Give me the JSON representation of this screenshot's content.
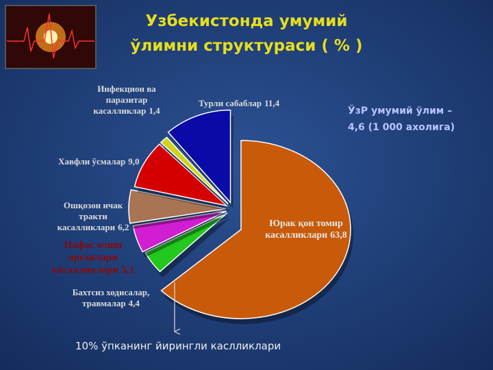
{
  "chart_data": {
    "type": "pie",
    "title": [
      "Узбекистонда умумий",
      "ўлимни структураси ( % )"
    ],
    "categories": [
      [
        "Юрак қон томир",
        "касалликлари"
      ],
      [
        "Бахтсиз ходисалар,",
        "травмалар"
      ],
      [
        "Нафас олиш",
        "органлари",
        "касалликлари"
      ],
      [
        "Ошқозон ичак",
        "тракти",
        "касалликлари"
      ],
      [
        "Хавфли ўсмалар"
      ],
      [
        "Инфекцион ва",
        "паразитар",
        "касалликлар"
      ],
      [
        "Турли сабаблар"
      ]
    ],
    "values": [
      63.8,
      4.4,
      5.1,
      6.2,
      9.0,
      1.4,
      11.4
    ],
    "value_labels": [
      "63,8",
      "4,4",
      "5,1",
      "6,2",
      "9,0",
      "1,4",
      "11,4"
    ],
    "colors": [
      "#c85a0a",
      "#22c81e",
      "#d21ed2",
      "#a87453",
      "#d40000",
      "#d2d21e",
      "#0a0aa8"
    ],
    "annotations": [
      "ЎзР умумий ўлим –",
      "4,6 (1 000 ахолига)"
    ],
    "footnote": "10% ўпканинг йирингли каслликлари"
  }
}
